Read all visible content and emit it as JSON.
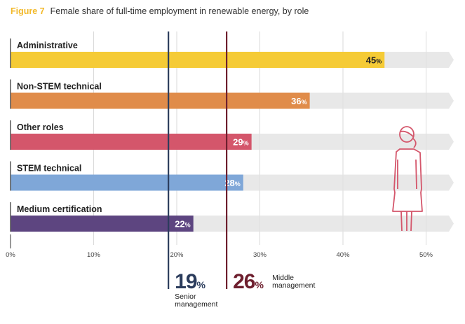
{
  "header": {
    "figure_label": "Figure 7",
    "title": "Female share of full-time employment in renewable energy, by role"
  },
  "chart_data": {
    "type": "bar",
    "orientation": "horizontal",
    "title": "Female share of full-time employment in renewable energy, by role",
    "xlabel": "",
    "ylabel": "",
    "xlim": [
      0,
      53
    ],
    "x_ticks": [
      0,
      10,
      20,
      30,
      40,
      50
    ],
    "x_tick_labels": [
      "0%",
      "10%",
      "20%",
      "30%",
      "40%",
      "50%"
    ],
    "grid": true,
    "categories": [
      "Administrative",
      "Non-STEM technical",
      "Other roles",
      "STEM technical",
      "Medium certification"
    ],
    "values": [
      45,
      36,
      29,
      28,
      22
    ],
    "value_labels": [
      "45",
      "36",
      "29",
      "28",
      "22"
    ],
    "value_suffix": "%",
    "colors": [
      "#f5cb36",
      "#e08c4a",
      "#d4566b",
      "#7fa7d8",
      "#5d4580"
    ],
    "label_colors": [
      "#222222",
      "#ffffff",
      "#ffffff",
      "#ffffff",
      "#ffffff"
    ],
    "track_color": "#e8e8e8",
    "reference_lines": [
      {
        "value": 19,
        "label_value": "19",
        "suffix": "%",
        "caption": [
          "Senior",
          "management"
        ],
        "color": "#2b3c5c"
      },
      {
        "value": 26,
        "label_value": "26",
        "suffix": "%",
        "caption": [
          "Middle",
          "management"
        ],
        "color": "#6e1f2e"
      }
    ],
    "icon": "woman-figure-icon",
    "icon_color": "#d4566b"
  }
}
